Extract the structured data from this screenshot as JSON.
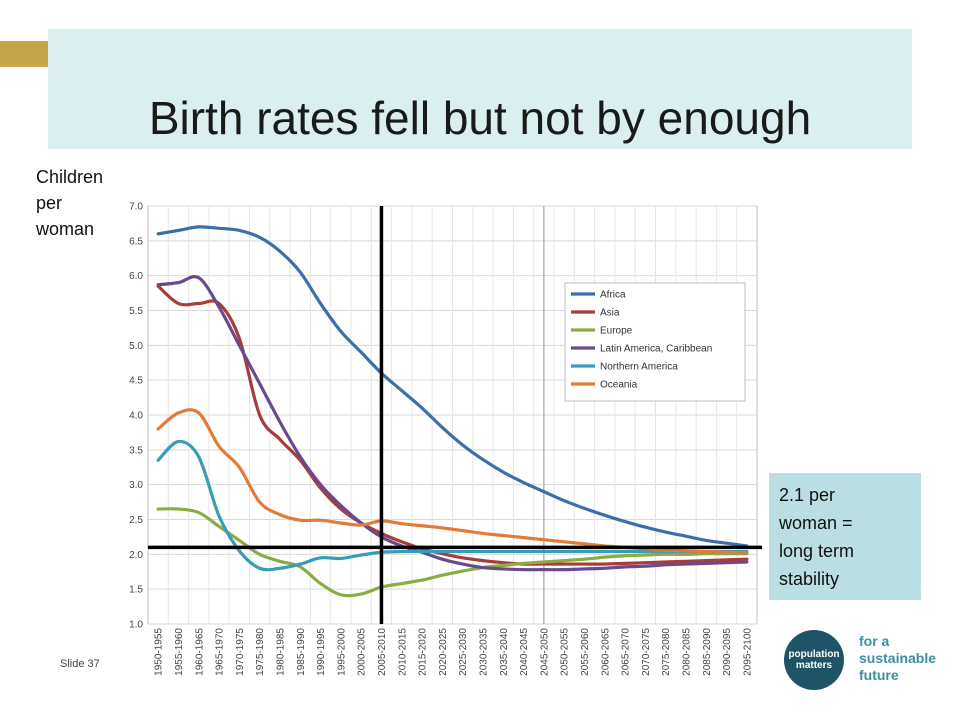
{
  "slide": {
    "title": "Birth rates fell but not by enough",
    "ylabel_lines": [
      "Children",
      "per",
      "woman"
    ],
    "note": "2.1 per\nwoman =\nlong term\nstability",
    "slide_number": "Slide 37",
    "logo_text": "population\nmatters",
    "tagline": "for a\nsustainable\nfuture",
    "colors": {
      "title_bg": "#dbeef0",
      "note_bg": "#b9dfe3",
      "accent": "#c6a44a",
      "logo": "#1f5366"
    }
  },
  "chart_data": {
    "type": "line",
    "categories": [
      "1950-1955",
      "1955-1960",
      "1960-1965",
      "1965-1970",
      "1970-1975",
      "1975-1980",
      "1980-1985",
      "1985-1990",
      "1990-1995",
      "1995-2000",
      "2000-2005",
      "2005-2010",
      "2010-2015",
      "2015-2020",
      "2020-2025",
      "2025-2030",
      "2030-2035",
      "2035-2040",
      "2040-2045",
      "2045-2050",
      "2050-2055",
      "2055-2060",
      "2060-2065",
      "2065-2070",
      "2070-2075",
      "2075-2080",
      "2080-2085",
      "2085-2090",
      "2090-2095",
      "2095-2100"
    ],
    "ylim": [
      1.0,
      7.0
    ],
    "yticks": [
      "1.0",
      "1.5",
      "2.0",
      "2.5",
      "3.0",
      "3.5",
      "4.0",
      "4.5",
      "5.0",
      "5.5",
      "6.0",
      "6.5",
      "7.0"
    ],
    "grid": true,
    "legend_position": "top-right",
    "series": [
      {
        "name": "Africa",
        "color": "#3d6ea8",
        "values": [
          6.6,
          6.65,
          6.7,
          6.68,
          6.65,
          6.55,
          6.35,
          6.05,
          5.6,
          5.2,
          4.9,
          4.6,
          4.35,
          4.1,
          3.82,
          3.57,
          3.36,
          3.18,
          3.03,
          2.9,
          2.77,
          2.66,
          2.56,
          2.47,
          2.39,
          2.32,
          2.26,
          2.2,
          2.16,
          2.12
        ]
      },
      {
        "name": "Asia",
        "color": "#a83c3a",
        "values": [
          5.85,
          5.6,
          5.6,
          5.6,
          5.1,
          4.0,
          3.65,
          3.35,
          2.95,
          2.65,
          2.45,
          2.3,
          2.18,
          2.08,
          2.01,
          1.95,
          1.91,
          1.88,
          1.86,
          1.86,
          1.86,
          1.86,
          1.86,
          1.87,
          1.88,
          1.89,
          1.9,
          1.91,
          1.92,
          1.93
        ]
      },
      {
        "name": "Europe",
        "color": "#8cab44",
        "values": [
          2.65,
          2.65,
          2.6,
          2.4,
          2.2,
          2.0,
          1.9,
          1.82,
          1.58,
          1.42,
          1.43,
          1.53,
          1.58,
          1.63,
          1.7,
          1.76,
          1.81,
          1.84,
          1.87,
          1.89,
          1.91,
          1.93,
          1.96,
          1.98,
          1.99,
          2.0,
          2.0,
          2.01,
          2.01,
          2.01
        ]
      },
      {
        "name": "Latin America, Caribbean",
        "color": "#6a4a8c",
        "values": [
          5.87,
          5.9,
          5.97,
          5.55,
          5.0,
          4.45,
          3.9,
          3.4,
          3.0,
          2.7,
          2.45,
          2.25,
          2.12,
          2.03,
          1.93,
          1.86,
          1.81,
          1.79,
          1.78,
          1.78,
          1.78,
          1.79,
          1.8,
          1.82,
          1.83,
          1.85,
          1.86,
          1.87,
          1.88,
          1.89
        ]
      },
      {
        "name": "Northern America",
        "color": "#3a9db8",
        "values": [
          3.35,
          3.62,
          3.4,
          2.55,
          2.05,
          1.8,
          1.8,
          1.86,
          1.95,
          1.94,
          1.99,
          2.03,
          2.04,
          2.04,
          2.04,
          2.04,
          2.04,
          2.04,
          2.04,
          2.04,
          2.04,
          2.04,
          2.04,
          2.04,
          2.04,
          2.04,
          2.04,
          2.04,
          2.04,
          2.04
        ]
      },
      {
        "name": "Oceania",
        "color": "#e07b39",
        "values": [
          3.8,
          4.03,
          4.03,
          3.55,
          3.25,
          2.75,
          2.57,
          2.49,
          2.49,
          2.45,
          2.42,
          2.48,
          2.44,
          2.41,
          2.38,
          2.34,
          2.3,
          2.27,
          2.24,
          2.21,
          2.18,
          2.15,
          2.12,
          2.1,
          2.08,
          2.06,
          2.05,
          2.04,
          2.03,
          2.02
        ]
      }
    ],
    "reference_line_value": 2.1,
    "marker_period": "2005-2010",
    "projection_start": "2045-2050"
  }
}
